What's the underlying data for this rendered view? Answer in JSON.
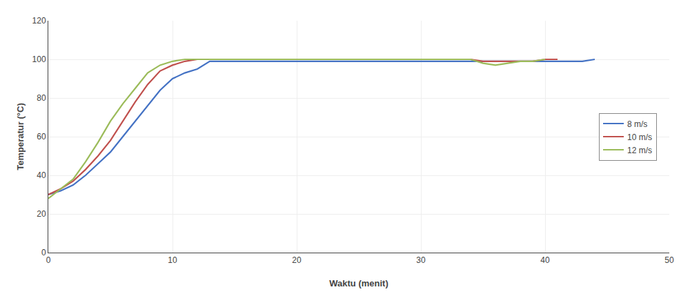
{
  "chart_data": {
    "type": "line",
    "xlabel": "Waktu (menit)",
    "ylabel": "Temperatur (°C)",
    "xlim": [
      0,
      50
    ],
    "ylim": [
      0,
      120
    ],
    "xticks": [
      0,
      10,
      20,
      30,
      40,
      50
    ],
    "yticks": [
      0,
      20,
      40,
      60,
      80,
      100,
      120
    ],
    "grid": true,
    "legend": "right",
    "series": [
      {
        "name": "8 m/s",
        "color": "#4472c4",
        "x": [
          0,
          1,
          2,
          3,
          4,
          5,
          6,
          7,
          8,
          9,
          10,
          11,
          12,
          13,
          14,
          15,
          16,
          17,
          18,
          19,
          20,
          21,
          22,
          23,
          24,
          25,
          26,
          27,
          28,
          29,
          30,
          31,
          32,
          33,
          34,
          35,
          36,
          37,
          38,
          39,
          40,
          41,
          42,
          43,
          44
        ],
        "values": [
          30,
          32,
          35,
          40,
          46,
          52,
          60,
          68,
          76,
          84,
          90,
          93,
          95,
          99,
          99,
          99,
          99,
          99,
          99,
          99,
          99,
          99,
          99,
          99,
          99,
          99,
          99,
          99,
          99,
          99,
          99,
          99,
          99,
          99,
          99,
          99,
          99,
          99,
          99,
          99,
          99,
          99,
          99,
          99,
          100
        ]
      },
      {
        "name": "10 m/s",
        "color": "#c0504d",
        "x": [
          0,
          1,
          2,
          3,
          4,
          5,
          6,
          7,
          8,
          9,
          10,
          11,
          12,
          13,
          14,
          15,
          16,
          17,
          18,
          19,
          20,
          21,
          22,
          23,
          24,
          25,
          26,
          27,
          28,
          29,
          30,
          31,
          32,
          33,
          34,
          35,
          36,
          37,
          38,
          39,
          40,
          41
        ],
        "values": [
          30,
          33,
          37,
          43,
          50,
          58,
          68,
          78,
          87,
          94,
          97,
          99,
          100,
          100,
          100,
          100,
          100,
          100,
          100,
          100,
          100,
          100,
          100,
          100,
          100,
          100,
          100,
          100,
          100,
          100,
          100,
          100,
          100,
          100,
          100,
          99,
          99,
          99,
          99,
          99,
          100,
          100
        ]
      },
      {
        "name": "12 m/s",
        "color": "#9bbb59",
        "x": [
          0,
          1,
          2,
          3,
          4,
          5,
          6,
          7,
          8,
          9,
          10,
          11,
          12,
          13,
          14,
          15,
          16,
          17,
          18,
          19,
          20,
          21,
          22,
          23,
          24,
          25,
          26,
          27,
          28,
          29,
          30,
          31,
          32,
          33,
          34,
          35,
          36,
          37,
          38,
          39,
          40
        ],
        "values": [
          28,
          33,
          38,
          47,
          57,
          68,
          77,
          85,
          93,
          97,
          99,
          100,
          100,
          100,
          100,
          100,
          100,
          100,
          100,
          100,
          100,
          100,
          100,
          100,
          100,
          100,
          100,
          100,
          100,
          100,
          100,
          100,
          100,
          100,
          100,
          98,
          97,
          98,
          99,
          99,
          100
        ]
      }
    ]
  }
}
